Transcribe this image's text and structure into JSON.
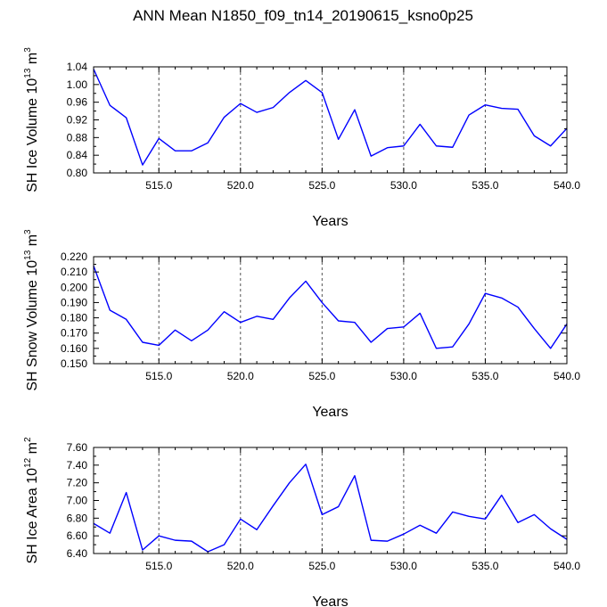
{
  "figure": {
    "title": "ANN Mean N1850_f09_tn14_20190615_ksno0p25"
  },
  "chart_data": [
    {
      "type": "line",
      "ylabel": "SH Ice Volume 10",
      "ylabel_exp": "13",
      "ylabel_unit": "m",
      "ylabel_unit_exp": "3",
      "xlabel": "Years",
      "xlim": [
        511,
        540
      ],
      "ylim": [
        0.8,
        1.04
      ],
      "xticks": [
        515,
        520,
        525,
        530,
        535,
        540
      ],
      "xtick_labels": [
        "515.0",
        "520.0",
        "525.0",
        "530.0",
        "535.0",
        "540.0"
      ],
      "yticks": [
        0.8,
        0.84,
        0.88,
        0.92,
        0.96,
        1.0,
        1.04
      ],
      "ytick_labels": [
        "0.80",
        "0.84",
        "0.88",
        "0.92",
        "0.96",
        "1.00",
        "1.04"
      ],
      "grid": "dashed vertical at major x ticks",
      "line_color": "#0000ff",
      "x": [
        511,
        512,
        513,
        514,
        515,
        516,
        517,
        518,
        519,
        520,
        521,
        522,
        523,
        524,
        525,
        526,
        527,
        528,
        529,
        530,
        531,
        532,
        533,
        534,
        535,
        536,
        537,
        538,
        539,
        540
      ],
      "values": [
        1.035,
        0.953,
        0.925,
        0.818,
        0.878,
        0.85,
        0.85,
        0.868,
        0.926,
        0.957,
        0.937,
        0.948,
        0.982,
        1.009,
        0.982,
        0.876,
        0.943,
        0.838,
        0.857,
        0.861,
        0.91,
        0.861,
        0.858,
        0.931,
        0.954,
        0.946,
        0.944,
        0.884,
        0.861,
        0.901
      ]
    },
    {
      "type": "line",
      "ylabel": "SH Snow Volume 10",
      "ylabel_exp": "13",
      "ylabel_unit": "m",
      "ylabel_unit_exp": "3",
      "xlabel": "Years",
      "xlim": [
        511,
        540
      ],
      "ylim": [
        0.15,
        0.22
      ],
      "xticks": [
        515,
        520,
        525,
        530,
        535,
        540
      ],
      "xtick_labels": [
        "515.0",
        "520.0",
        "525.0",
        "530.0",
        "535.0",
        "540.0"
      ],
      "yticks": [
        0.15,
        0.16,
        0.17,
        0.18,
        0.19,
        0.2,
        0.21,
        0.22
      ],
      "ytick_labels": [
        "0.150",
        "0.160",
        "0.170",
        "0.180",
        "0.190",
        "0.200",
        "0.210",
        "0.220"
      ],
      "grid": "dashed vertical at major x ticks",
      "line_color": "#0000ff",
      "x": [
        511,
        512,
        513,
        514,
        515,
        516,
        517,
        518,
        519,
        520,
        521,
        522,
        523,
        524,
        525,
        526,
        527,
        528,
        529,
        530,
        531,
        532,
        533,
        534,
        535,
        536,
        537,
        538,
        539,
        540
      ],
      "values": [
        0.214,
        0.185,
        0.179,
        0.164,
        0.162,
        0.172,
        0.165,
        0.172,
        0.184,
        0.177,
        0.181,
        0.179,
        0.193,
        0.204,
        0.19,
        0.178,
        0.177,
        0.164,
        0.173,
        0.174,
        0.183,
        0.16,
        0.161,
        0.176,
        0.196,
        0.193,
        0.187,
        0.173,
        0.16,
        0.176
      ]
    },
    {
      "type": "line",
      "ylabel": "SH Ice Area 10",
      "ylabel_exp": "12",
      "ylabel_unit": "m",
      "ylabel_unit_exp": "2",
      "xlabel": "Years",
      "xlim": [
        511,
        540
      ],
      "ylim": [
        6.4,
        7.6
      ],
      "xticks": [
        515,
        520,
        525,
        530,
        535,
        540
      ],
      "xtick_labels": [
        "515.0",
        "520.0",
        "525.0",
        "530.0",
        "535.0",
        "540.0"
      ],
      "yticks": [
        6.4,
        6.6,
        6.8,
        7.0,
        7.2,
        7.4,
        7.6
      ],
      "ytick_labels": [
        "6.40",
        "6.60",
        "6.80",
        "7.00",
        "7.20",
        "7.40",
        "7.60"
      ],
      "grid": "dashed vertical at major x ticks",
      "line_color": "#0000ff",
      "x": [
        511,
        512,
        513,
        514,
        515,
        516,
        517,
        518,
        519,
        520,
        521,
        522,
        523,
        524,
        525,
        526,
        527,
        528,
        529,
        530,
        531,
        532,
        533,
        534,
        535,
        536,
        537,
        538,
        539,
        540
      ],
      "values": [
        6.74,
        6.63,
        7.09,
        6.44,
        6.6,
        6.55,
        6.54,
        6.42,
        6.5,
        6.79,
        6.67,
        6.94,
        7.2,
        7.41,
        6.84,
        6.93,
        7.28,
        6.55,
        6.54,
        6.62,
        6.72,
        6.63,
        6.87,
        6.82,
        6.79,
        7.06,
        6.75,
        6.84,
        6.68,
        6.56
      ]
    }
  ]
}
